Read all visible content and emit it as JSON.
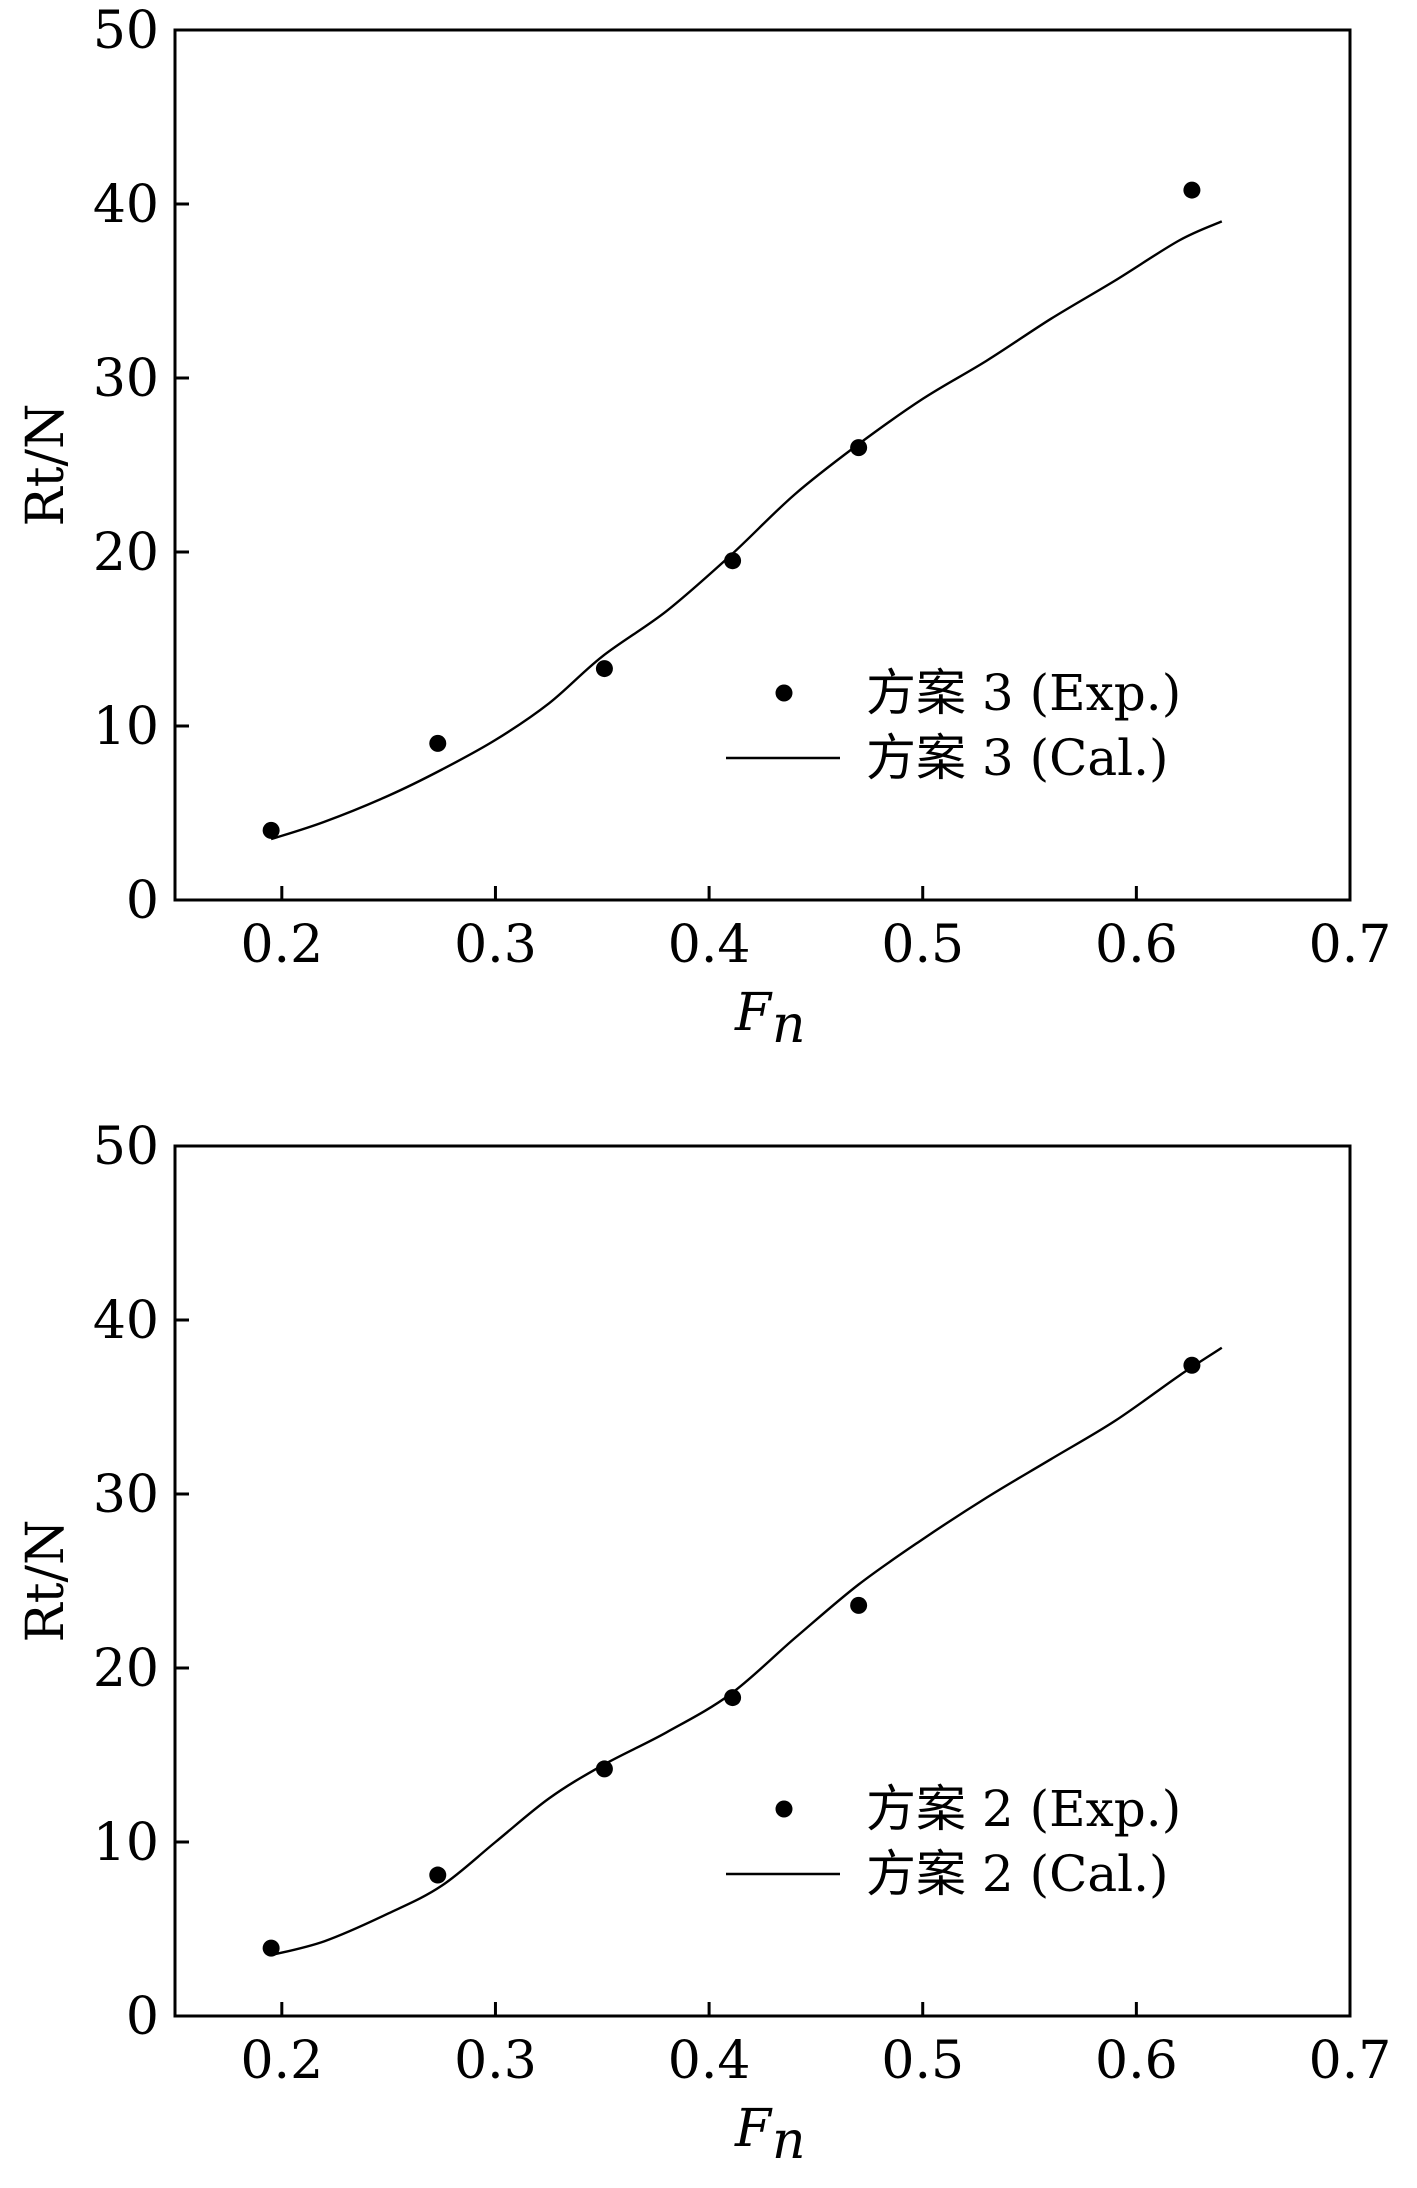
{
  "chart_data": [
    {
      "type": "scatter",
      "xlabel": "F",
      "xlabel_subscript": "n",
      "ylabel": "Rt/N",
      "xlim": [
        0.15,
        0.7
      ],
      "ylim": [
        0,
        50
      ],
      "x_ticks": [
        "0.2",
        "0.3",
        "0.4",
        "0.5",
        "0.6",
        "0.7"
      ],
      "y_ticks": [
        "0",
        "10",
        "20",
        "30",
        "40",
        "50"
      ],
      "legend_position": "lower-right",
      "series": [
        {
          "name": "方案 3 (Exp.)",
          "kind": "points",
          "x": [
            0.195,
            0.273,
            0.351,
            0.411,
            0.47,
            0.626
          ],
          "y": [
            4.0,
            9.0,
            13.3,
            19.5,
            26.0,
            40.8
          ]
        },
        {
          "name": "方案 3 (Cal.)",
          "kind": "line",
          "x": [
            0.195,
            0.22,
            0.25,
            0.275,
            0.3,
            0.325,
            0.35,
            0.38,
            0.41,
            0.44,
            0.47,
            0.5,
            0.53,
            0.56,
            0.59,
            0.62,
            0.64
          ],
          "y": [
            3.5,
            4.5,
            6.0,
            7.5,
            9.2,
            11.3,
            14.0,
            16.6,
            19.8,
            23.3,
            26.2,
            28.8,
            31.0,
            33.4,
            35.6,
            37.9,
            39.0
          ]
        }
      ]
    },
    {
      "type": "scatter",
      "xlabel": "F",
      "xlabel_subscript": "n",
      "ylabel": "Rt/N",
      "xlim": [
        0.15,
        0.7
      ],
      "ylim": [
        0,
        50
      ],
      "x_ticks": [
        "0.2",
        "0.3",
        "0.4",
        "0.5",
        "0.6",
        "0.7"
      ],
      "y_ticks": [
        "0",
        "10",
        "20",
        "30",
        "40",
        "50"
      ],
      "legend_position": "lower-right",
      "series": [
        {
          "name": "方案 2 (Exp.)",
          "kind": "points",
          "x": [
            0.195,
            0.273,
            0.351,
            0.411,
            0.47,
            0.626
          ],
          "y": [
            3.9,
            8.1,
            14.2,
            18.3,
            23.6,
            37.4
          ]
        },
        {
          "name": "方案 2 (Cal.)",
          "kind": "line",
          "x": [
            0.195,
            0.22,
            0.25,
            0.275,
            0.3,
            0.325,
            0.35,
            0.38,
            0.41,
            0.44,
            0.47,
            0.5,
            0.53,
            0.56,
            0.59,
            0.62,
            0.64
          ],
          "y": [
            3.5,
            4.3,
            5.9,
            7.5,
            10.0,
            12.5,
            14.4,
            16.3,
            18.5,
            21.7,
            24.8,
            27.4,
            29.8,
            32.0,
            34.2,
            36.8,
            38.4
          ]
        }
      ]
    }
  ]
}
